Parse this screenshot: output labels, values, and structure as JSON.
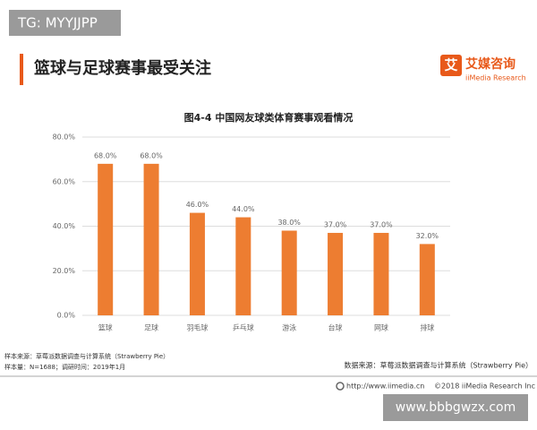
{
  "watermark_top": "TG: MYYJJPP",
  "header": {
    "title": "篮球与足球赛事最受关注",
    "logo_icon": "艾",
    "logo_name": "艾媒咨询",
    "logo_sub": "iiMedia Research"
  },
  "chart_data": {
    "type": "bar",
    "title": "图4-4 中国网友球类体育赛事观看情况",
    "categories": [
      "篮球",
      "足球",
      "羽毛球",
      "乒乓球",
      "游泳",
      "台球",
      "网球",
      "排球"
    ],
    "values": [
      68,
      68,
      46,
      44,
      38,
      37,
      37,
      32
    ],
    "value_labels": [
      "68.0%",
      "68.0%",
      "46.0%",
      "44.0%",
      "38.0%",
      "37.0%",
      "37.0%",
      "32.0%"
    ],
    "color": "#ed7d31",
    "ylim": [
      0,
      80
    ],
    "yticks": [
      {
        "value": 0,
        "label": "0.0%"
      },
      {
        "value": 20,
        "label": "20.0%"
      },
      {
        "value": 40,
        "label": "40.0%"
      },
      {
        "value": 60,
        "label": "60.0%"
      },
      {
        "value": 80,
        "label": "80.0%"
      }
    ],
    "grid": true
  },
  "notes": {
    "sample_source": "样本来源：草莓派数据调查与计算系统（Strawberry Pie）",
    "sample_size": "样本量：N=1688；调研时间：2019年1月",
    "data_source": "数据来源：草莓派数据调查与计算系统（Strawberry Pie）"
  },
  "footer": {
    "url": "http://www.iimedia.cn",
    "copyright": "©2018 iiMedia Research Inc"
  },
  "watermark_bottom": "www.bbbgwzx.com"
}
